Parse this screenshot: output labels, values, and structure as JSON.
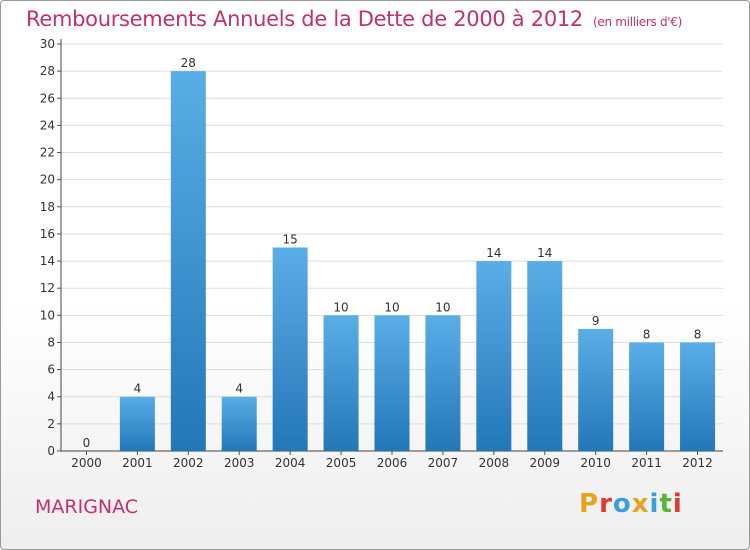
{
  "header": {
    "title": "Remboursements Annuels de la Dette de 2000 à 2012",
    "unit": "(en milliers d'€)"
  },
  "footer": {
    "commune": "MARIGNAC",
    "logo_text": "Proxiti",
    "logo_colors": [
      "#e8a21a",
      "#e03a2f",
      "#3aa0d8",
      "#e8a21a",
      "#3aa0d8",
      "#5bb33b",
      "#e03a2f"
    ]
  },
  "colors": {
    "bar_light": "#5aaee6",
    "bar_dark": "#2277b8",
    "title": "#c2306e",
    "grid": "#dddddd"
  },
  "chart_data": {
    "type": "bar",
    "categories": [
      "2000",
      "2001",
      "2002",
      "2003",
      "2004",
      "2005",
      "2006",
      "2007",
      "2008",
      "2009",
      "2010",
      "2011",
      "2012"
    ],
    "values": [
      0,
      4,
      28,
      4,
      15,
      10,
      10,
      10,
      14,
      14,
      9,
      8,
      8
    ],
    "ylim": [
      0,
      30
    ],
    "yticks": [
      0,
      2,
      4,
      6,
      8,
      10,
      12,
      14,
      16,
      18,
      20,
      22,
      24,
      26,
      28,
      30
    ],
    "grid": true,
    "data_labels": true
  }
}
